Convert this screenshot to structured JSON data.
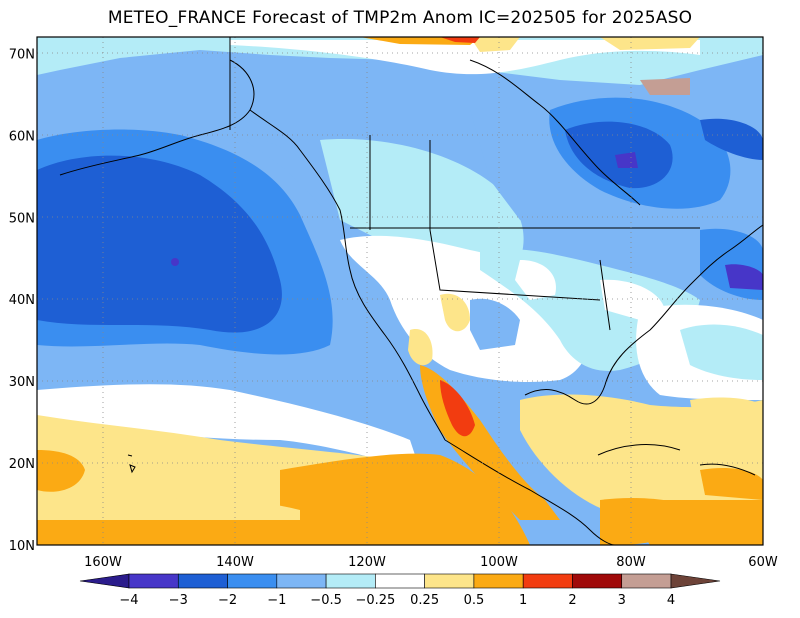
{
  "title": "METEO_FRANCE Forecast of TMP2m Anom IC=202505 for 2025ASO",
  "map": {
    "lon_range": [
      -170,
      -60
    ],
    "lat_range": [
      10,
      72
    ],
    "lon_ticks": [
      {
        "value": -160,
        "label": "160W"
      },
      {
        "value": -140,
        "label": "140W"
      },
      {
        "value": -120,
        "label": "120W"
      },
      {
        "value": -100,
        "label": "100W"
      },
      {
        "value": -80,
        "label": "80W"
      },
      {
        "value": -60,
        "label": "60W"
      }
    ],
    "lat_ticks": [
      {
        "value": 10,
        "label": "10N"
      },
      {
        "value": 20,
        "label": "20N"
      },
      {
        "value": 30,
        "label": "30N"
      },
      {
        "value": 40,
        "label": "40N"
      },
      {
        "value": 50,
        "label": "50N"
      },
      {
        "value": 60,
        "label": "60N"
      },
      {
        "value": 70,
        "label": "70N"
      }
    ],
    "grid": "dotted"
  },
  "colorbar": {
    "labels": [
      "-4",
      "-3",
      "-2",
      "-1",
      "-0.5",
      "-0.25",
      "0.25",
      "0.5",
      "1",
      "2",
      "3",
      "4"
    ],
    "colors": [
      "#2b1c8c",
      "#4736c8",
      "#1e5fd4",
      "#3a8ef0",
      "#7db6f5",
      "#b4ecf7",
      "#ffffff",
      "#fde58a",
      "#fbaa14",
      "#f23c10",
      "#a00a0a",
      "#c49e94",
      "#6d4338"
    ]
  }
}
